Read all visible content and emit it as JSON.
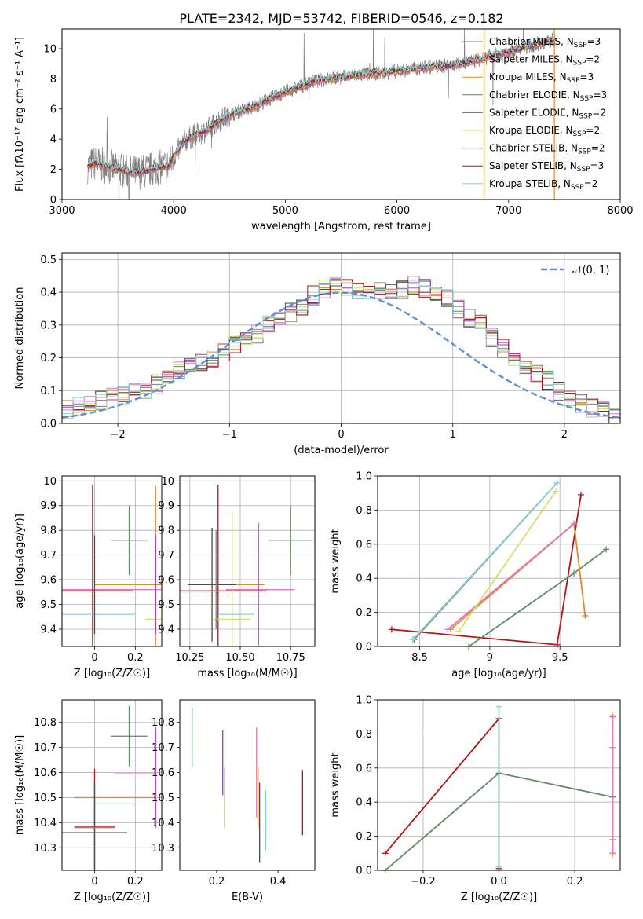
{
  "title": "PLATE=2342, MJD=53742, FIBERID=0546, z=0.182",
  "colors": {
    "chabrier_miles": "#808080",
    "salpeter_miles": "#e377c2",
    "kroupa_miles": "#e08a2c",
    "chabrier_elodie": "#5f8a64",
    "salpeter_elodie": "#b52ccf",
    "kroupa_elodie": "#d4e06a",
    "chabrier_stelib": "#4a4a4a",
    "salpeter_stelib": "#b01818",
    "kroupa_stelib": "#86d4d8",
    "normal": "#5f8fd6"
  },
  "chart_data": [
    {
      "type": "line",
      "xlabel": "wavelength [Angstrom, rest frame]",
      "ylabel": "Flux [fλ10⁻¹⁷ erg cm⁻² s⁻¹ A⁻¹]",
      "xlim": [
        3000,
        8000
      ],
      "ylim": [
        0,
        11.3
      ],
      "xticks": [
        3000,
        4000,
        5000,
        6000,
        7000,
        8000
      ],
      "yticks": [
        0,
        2,
        4,
        6,
        8,
        10
      ],
      "grid": false,
      "legend_position": "top-right",
      "legend": [
        "Chabrier MILES, N_SSP=3",
        "Salpeter MILES, N_SSP=2",
        "Kroupa MILES, N_SSP=3",
        "Chabrier ELODIE, N_SSP=3",
        "Salpeter ELODIE, N_SSP=2",
        "Kroupa ELODIE, N_SSP=2",
        "Chabrier STELIB, N_SSP=2",
        "Salpeter STELIB, N_SSP=3",
        "Kroupa STELIB, N_SSP=2"
      ],
      "model_continuum": {
        "x": [
          3230,
          3300,
          3450,
          3550,
          3650,
          3750,
          3850,
          3950,
          4000,
          4100,
          4200,
          4300,
          4400,
          4500,
          4700,
          4900,
          5100,
          5300,
          5500,
          5700,
          5900,
          6100,
          6300,
          6500,
          6700,
          6900,
          7100,
          7300,
          7420
        ],
        "y": [
          2.2,
          2.4,
          2.1,
          1.9,
          1.8,
          1.9,
          2.1,
          2.2,
          2.8,
          3.9,
          4.3,
          4.6,
          5.2,
          5.6,
          6.1,
          6.8,
          7.4,
          7.9,
          8.1,
          8.3,
          8.4,
          8.6,
          8.8,
          8.9,
          9.2,
          9.6,
          10.0,
          10.4,
          10.6
        ]
      },
      "data_spectrum_note": "observed spectrum drawn as noisy grey line around the model continuum"
    },
    {
      "type": "bar",
      "xlabel": "(data-model)/error",
      "ylabel": "Normed distribution",
      "xlim": [
        -2.5,
        2.5
      ],
      "ylim": [
        0,
        0.52
      ],
      "xticks": [
        -2,
        -1,
        0,
        1,
        2
      ],
      "yticks": [
        0.0,
        0.1,
        0.2,
        0.3,
        0.4,
        0.5
      ],
      "grid": true,
      "legend_position": "top-right",
      "normal_label": "𝒩(0, 1)",
      "bin_width": 0.1,
      "histogram_shape": [
        0.045,
        0.055,
        0.06,
        0.07,
        0.08,
        0.085,
        0.095,
        0.1,
        0.12,
        0.14,
        0.16,
        0.18,
        0.19,
        0.2,
        0.22,
        0.24,
        0.25,
        0.27,
        0.3,
        0.32,
        0.34,
        0.36,
        0.39,
        0.41,
        0.42,
        0.42,
        0.41,
        0.4,
        0.4,
        0.41,
        0.41,
        0.42,
        0.41,
        0.39,
        0.38,
        0.35,
        0.32,
        0.3,
        0.26,
        0.23,
        0.2,
        0.17,
        0.15,
        0.13,
        0.1,
        0.08,
        0.06,
        0.045,
        0.035,
        0.025
      ]
    },
    {
      "type": "scatter",
      "xlabel": "Z [log₁₀(Z/Z☉)]",
      "ylabel": "age  [log₁₀(age/yr)]",
      "xlim": [
        -0.16,
        0.33
      ],
      "ylim": [
        9.33,
        10.02
      ],
      "xticks": [
        0.0,
        0.2
      ],
      "yticks": [
        9.4,
        9.5,
        9.6,
        9.7,
        9.8,
        9.9,
        10.0
      ],
      "grid": true,
      "points": [
        {
          "model": "chabrier_elodie",
          "x": 0.17,
          "y": 9.76,
          "xerr": 0.09,
          "yerr": 0.14
        },
        {
          "model": "kroupa_miles",
          "x": 0.3,
          "y": 9.58,
          "xerr": 0.3,
          "yerr": 0.4
        },
        {
          "model": "salpeter_miles",
          "x": 0.1,
          "y": 9.56,
          "xerr": 0.3,
          "yerr": 0.0
        },
        {
          "model": "salpeter_stelib",
          "x": -0.01,
          "y": 9.555,
          "xerr": 0.2,
          "yerr": 0.43
        },
        {
          "model": "kroupa_elodie",
          "x": 0.3,
          "y": 9.44,
          "xerr": 0.05,
          "yerr": 0.0
        },
        {
          "model": "kroupa_stelib",
          "x": 0.0,
          "y": 9.46,
          "xerr": 0.2,
          "yerr": 0.1
        },
        {
          "model": "chabrier_stelib",
          "x": 0.0,
          "y": 9.58,
          "xerr": 0.0,
          "yerr": 0.2
        },
        {
          "model": "salpeter_elodie",
          "x": 0.3,
          "y": 9.58,
          "xerr": 0.0,
          "yerr": 0.2
        }
      ]
    },
    {
      "type": "scatter",
      "xlabel": "mass [log₁₀(M/M☉)]",
      "ylabel": "",
      "xlim": [
        10.2,
        10.87
      ],
      "ylim": [
        9.33,
        10.02
      ],
      "xticks": [
        10.25,
        10.5,
        10.75
      ],
      "xtick_labels": [
        "10.25",
        "10.50",
        "10.75"
      ],
      "yticks": [
        9.4,
        9.5,
        9.6,
        9.7,
        9.8,
        9.9,
        10.0
      ],
      "grid": true,
      "points": [
        {
          "model": "chabrier_elodie",
          "x": 10.75,
          "y": 9.76,
          "xerr": 0.11,
          "yerr": 0.14
        },
        {
          "model": "kroupa_miles",
          "x": 10.5,
          "y": 9.58,
          "xerr": 0.12,
          "yerr": 0.0
        },
        {
          "model": "salpeter_miles",
          "x": 10.6,
          "y": 9.56,
          "xerr": 0.17,
          "yerr": 0.0
        },
        {
          "model": "salpeter_stelib",
          "x": 10.39,
          "y": 9.555,
          "xerr": 0.24,
          "yerr": 0.43
        },
        {
          "model": "kroupa_elodie",
          "x": 10.46,
          "y": 9.44,
          "xerr": 0.09,
          "yerr": 0.44
        },
        {
          "model": "kroupa_stelib",
          "x": 10.48,
          "y": 9.46,
          "xerr": 0.09,
          "yerr": 0.0
        },
        {
          "model": "chabrier_stelib",
          "x": 10.36,
          "y": 9.58,
          "xerr": 0.12,
          "yerr": 0.23
        },
        {
          "model": "salpeter_elodie",
          "x": 10.59,
          "y": 9.58,
          "xerr": 0.0,
          "yerr": 0.25
        },
        {
          "model": "chabrier_miles",
          "x": 10.38,
          "y": 9.6,
          "xerr": 0.0,
          "yerr": 0.2
        }
      ]
    },
    {
      "type": "line",
      "xlabel": "age  [log₁₀(age/yr)]",
      "ylabel": "mass weight",
      "xlim": [
        8.2,
        9.93
      ],
      "ylim": [
        0,
        1.0
      ],
      "xticks": [
        8.5,
        9.0,
        9.5
      ],
      "yticks": [
        0.0,
        0.2,
        0.4,
        0.6,
        0.8,
        1.0
      ],
      "grid": true,
      "series": [
        {
          "model": "salpeter_stelib",
          "x": [
            8.3,
            9.48,
            9.65
          ],
          "y": [
            0.1,
            0.01,
            0.89
          ]
        },
        {
          "model": "chabrier_elodie",
          "x": [
            8.85,
            9.6,
            9.83
          ],
          "y": [
            0.0,
            0.43,
            0.57
          ]
        },
        {
          "model": "kroupa_miles",
          "x": [
            8.72,
            9.6,
            9.68
          ],
          "y": [
            0.1,
            0.72,
            0.18
          ]
        },
        {
          "model": "salpeter_miles",
          "x": [
            8.7,
            9.6
          ],
          "y": [
            0.1,
            0.72
          ]
        },
        {
          "model": "kroupa_elodie",
          "x": [
            8.78,
            9.47
          ],
          "y": [
            0.09,
            0.91
          ]
        },
        {
          "model": "chabrier_miles",
          "x": [
            8.46,
            9.48
          ],
          "y": [
            0.04,
            0.96
          ]
        },
        {
          "model": "kroupa_stelib",
          "x": [
            8.45,
            9.48
          ],
          "y": [
            0.04,
            0.96
          ]
        }
      ]
    },
    {
      "type": "scatter",
      "xlabel": "Z [log₁₀(Z/Z☉)]",
      "ylabel": "mass [log₁₀(M/M☉)]",
      "xlim": [
        -0.16,
        0.33
      ],
      "ylim": [
        10.21,
        10.89
      ],
      "xticks": [
        0.0,
        0.2
      ],
      "yticks": [
        10.3,
        10.4,
        10.5,
        10.6,
        10.7,
        10.8
      ],
      "grid": true,
      "points": [
        {
          "model": "chabrier_elodie",
          "x": 0.17,
          "y": 10.745,
          "xerr": 0.09,
          "yerr": 0.12
        },
        {
          "model": "kroupa_miles",
          "x": 0.1,
          "y": 10.5,
          "xerr": 0.2,
          "yerr": 0.0
        },
        {
          "model": "salpeter_miles",
          "x": 0.2,
          "y": 10.595,
          "xerr": 0.1,
          "yerr": 0.0
        },
        {
          "model": "salpeter_stelib",
          "x": 0.0,
          "y": 10.385,
          "xerr": 0.1,
          "yerr": 0.23
        },
        {
          "model": "kroupa_elodie",
          "x": 0.3,
          "y": 10.5,
          "xerr": 0.0,
          "yerr": 0.12
        },
        {
          "model": "kroupa_stelib",
          "x": 0.1,
          "y": 10.475,
          "xerr": 0.1,
          "yerr": 0.0
        },
        {
          "model": "chabrier_stelib",
          "x": 0.0,
          "y": 10.36,
          "xerr": 0.16,
          "yerr": 0.2
        },
        {
          "model": "salpeter_elodie",
          "x": 0.3,
          "y": 10.58,
          "xerr": 0.0,
          "yerr": 0.2
        },
        {
          "model": "chabrier_miles",
          "x": 0.0,
          "y": 10.38,
          "xerr": 0.1,
          "yerr": 0.0
        }
      ]
    },
    {
      "type": "scatter",
      "xlabel": "E(B-V)",
      "ylabel": "",
      "xlim": [
        0.08,
        0.52
      ],
      "ylim": [
        10.21,
        10.89
      ],
      "xticks": [
        0.2,
        0.4
      ],
      "yticks": [
        10.3,
        10.4,
        10.5,
        10.6,
        10.7,
        10.8
      ],
      "grid": false,
      "points": [
        {
          "model": "chabrier_elodie",
          "x": 0.12,
          "y": 10.74,
          "xerr": 0.0,
          "yerr": 0.12
        },
        {
          "model": "salpeter_elodie",
          "x": 0.22,
          "y": 10.64,
          "xerr": 0.0,
          "yerr": 0.13
        },
        {
          "model": "kroupa_elodie",
          "x": 0.225,
          "y": 10.5,
          "xerr": 0.0,
          "yerr": 0.12
        },
        {
          "model": "salpeter_miles",
          "x": 0.33,
          "y": 10.6,
          "xerr": 0.0,
          "yerr": 0.18
        },
        {
          "model": "kroupa_miles",
          "x": 0.335,
          "y": 10.5,
          "xerr": 0.0,
          "yerr": 0.12
        },
        {
          "model": "chabrier_stelib",
          "x": 0.34,
          "y": 10.4,
          "xerr": 0.0,
          "yerr": 0.16
        },
        {
          "model": "kroupa_stelib",
          "x": 0.36,
          "y": 10.41,
          "xerr": 0.0,
          "yerr": 0.12
        },
        {
          "model": "salpeter_stelib",
          "x": 0.48,
          "y": 10.48,
          "xerr": 0.0,
          "yerr": 0.13
        }
      ]
    },
    {
      "type": "line",
      "xlabel": "Z [log₁₀(Z/Z☉)]",
      "ylabel": "mass weight",
      "xlim": [
        -0.32,
        0.32
      ],
      "ylim": [
        0,
        1.0
      ],
      "xticks": [
        -0.2,
        0.0,
        0.2
      ],
      "xtick_labels": [
        "−0.2",
        "0.0",
        "0.2"
      ],
      "yticks": [
        0.0,
        0.2,
        0.4,
        0.6,
        0.8,
        1.0
      ],
      "grid": true,
      "series": [
        {
          "model": "salpeter_stelib",
          "x": [
            -0.3,
            0.0,
            0.0
          ],
          "y": [
            0.1,
            0.89,
            0.01
          ]
        },
        {
          "model": "chabrier_elodie",
          "x": [
            -0.3,
            0.0,
            0.3
          ],
          "y": [
            0.0,
            0.57,
            0.43
          ]
        },
        {
          "model": "kroupa_stelib",
          "x": [
            0.0,
            0.0
          ],
          "y": [
            0.96,
            0.02
          ]
        },
        {
          "model": "kroupa_elodie",
          "x": [
            0.3,
            0.3
          ],
          "y": [
            0.91,
            0.09
          ]
        },
        {
          "model": "kroupa_miles",
          "x": [
            0.3,
            0.3,
            0.3
          ],
          "y": [
            0.72,
            0.18,
            0.1
          ]
        },
        {
          "model": "salpeter_miles",
          "x": [
            0.3,
            0.3
          ],
          "y": [
            0.9,
            0.1
          ]
        }
      ]
    }
  ]
}
